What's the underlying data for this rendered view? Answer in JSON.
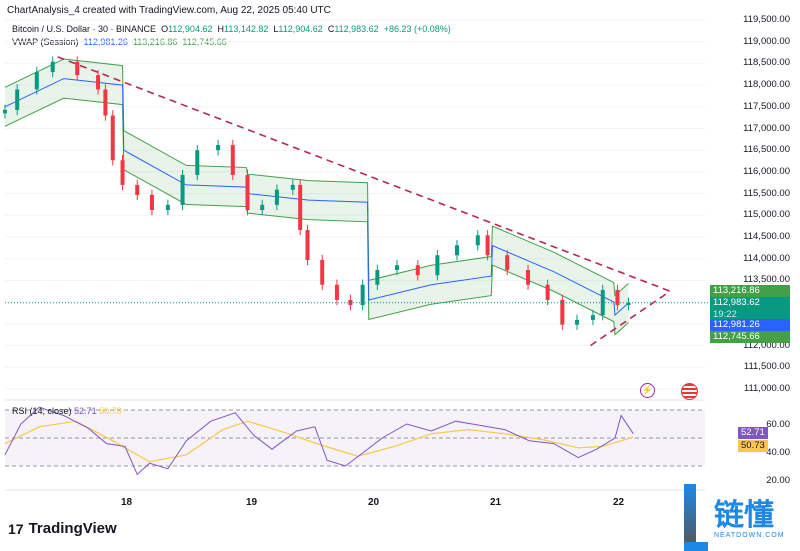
{
  "header": {
    "credit": "ChartAnalysis_4 created with TradingView.com, Aug 22, 2025 05:40 UTC"
  },
  "legend": {
    "symbol": "Bitcoin / U.S. Dollar · 30 · BINANCE",
    "o_label": "O",
    "o": "112,904.62",
    "h_label": "H",
    "h": "113,142.82",
    "l_label": "L",
    "l": "112,904.62",
    "c_label": "C",
    "c": "112,983.62",
    "change": "+86.23 (+0.08%)",
    "vwap_label": "VWAP (Session)",
    "vwap": "112,981.26",
    "vwap_upper": "113,216.86",
    "vwap_lower": "112,745.66"
  },
  "rsi_legend": {
    "label": "RSI (14, close)",
    "rsi": "52.71",
    "ma": "50.73"
  },
  "price_axis": [
    "119,500.00",
    "119,000.00",
    "118,500.00",
    "118,000.00",
    "117,500.00",
    "117,000.00",
    "116,500.00",
    "116,000.00",
    "115,500.00",
    "115,000.00",
    "114,500.00",
    "114,000.00",
    "113,500.00",
    "112,000.00",
    "111,500.00",
    "111,000.00"
  ],
  "price_tags": {
    "upper": "113,216.86",
    "last": "112,983.62",
    "countdown": "19:22",
    "vwap": "112,981.26",
    "lower": "112,745.66"
  },
  "rsi_axis": [
    "60.00",
    "40.00",
    "20.00"
  ],
  "rsi_tags": {
    "rsi": "52.71",
    "ma": "50.73"
  },
  "time_axis": [
    "18",
    "19",
    "20",
    "21",
    "22"
  ],
  "brand": {
    "name": "TradingView",
    "watermark": "链懂",
    "watermark_sub": "NEATDOWN.COM"
  },
  "colors": {
    "up": "#089981",
    "down": "#f23645",
    "vwap": "#2962ff",
    "band": "#43a047",
    "trend": "#b2275a",
    "rsi": "#7e57c2",
    "rsi_ma": "#f9c74f"
  },
  "chart_data": {
    "type": "candlestick",
    "ylim": [
      110750,
      119750
    ],
    "xlim": [
      17.0,
      22.5
    ],
    "closes": [
      [
        17.02,
        117430
      ],
      [
        17.12,
        117900
      ],
      [
        17.28,
        118300
      ],
      [
        17.41,
        118540
      ],
      [
        17.61,
        118230
      ],
      [
        17.78,
        117900
      ],
      [
        17.84,
        117300
      ],
      [
        17.9,
        116270
      ],
      [
        17.98,
        115700
      ],
      [
        18.1,
        115470
      ],
      [
        18.22,
        115120
      ],
      [
        18.35,
        115240
      ],
      [
        18.47,
        115930
      ],
      [
        18.59,
        116500
      ],
      [
        18.76,
        116620
      ],
      [
        18.88,
        115930
      ],
      [
        19.0,
        115120
      ],
      [
        19.12,
        115240
      ],
      [
        19.24,
        115590
      ],
      [
        19.37,
        115700
      ],
      [
        19.43,
        114660
      ],
      [
        19.49,
        113970
      ],
      [
        19.61,
        113400
      ],
      [
        19.73,
        113050
      ],
      [
        19.84,
        112930
      ],
      [
        19.94,
        113400
      ],
      [
        20.06,
        113740
      ],
      [
        20.22,
        113850
      ],
      [
        20.39,
        113620
      ],
      [
        20.55,
        114080
      ],
      [
        20.71,
        114310
      ],
      [
        20.88,
        114540
      ],
      [
        20.96,
        114080
      ],
      [
        21.12,
        113740
      ],
      [
        21.29,
        113400
      ],
      [
        21.45,
        113050
      ],
      [
        21.57,
        112480
      ],
      [
        21.69,
        112590
      ],
      [
        21.82,
        112700
      ],
      [
        21.9,
        113280
      ],
      [
        22.02,
        112930
      ],
      [
        22.11,
        112983
      ]
    ],
    "vwap": [
      [
        17.02,
        117500
      ],
      [
        17.5,
        118150
      ],
      [
        17.98,
        118000
      ],
      [
        17.99,
        116500
      ],
      [
        18.5,
        115700
      ],
      [
        18.99,
        115650
      ],
      [
        19.0,
        115500
      ],
      [
        19.5,
        115350
      ],
      [
        19.98,
        115300
      ],
      [
        19.99,
        113050
      ],
      [
        20.5,
        113400
      ],
      [
        20.99,
        113600
      ],
      [
        21.0,
        114300
      ],
      [
        21.5,
        113700
      ],
      [
        21.99,
        113000
      ],
      [
        22.0,
        112700
      ],
      [
        22.11,
        112981
      ]
    ],
    "trendlines": [
      {
        "from": [
          17.45,
          118650
        ],
        "to": [
          22.45,
          113250
        ]
      },
      {
        "from": [
          21.8,
          112000
        ],
        "to": [
          22.45,
          113250
        ]
      }
    ],
    "current_price": 112983.62,
    "rsi": {
      "ylim": [
        15,
        75
      ],
      "levels": [
        70,
        30
      ],
      "values": [
        [
          17.02,
          38
        ],
        [
          17.15,
          60
        ],
        [
          17.3,
          72
        ],
        [
          17.5,
          66
        ],
        [
          17.7,
          57
        ],
        [
          17.85,
          46
        ],
        [
          18.0,
          44
        ],
        [
          18.1,
          24
        ],
        [
          18.2,
          32
        ],
        [
          18.35,
          28
        ],
        [
          18.5,
          48
        ],
        [
          18.7,
          62
        ],
        [
          18.9,
          68
        ],
        [
          19.05,
          52
        ],
        [
          19.2,
          42
        ],
        [
          19.4,
          55
        ],
        [
          19.55,
          58
        ],
        [
          19.65,
          34
        ],
        [
          19.8,
          30
        ],
        [
          19.95,
          40
        ],
        [
          20.1,
          50
        ],
        [
          20.3,
          60
        ],
        [
          20.5,
          55
        ],
        [
          20.7,
          62
        ],
        [
          20.9,
          59
        ],
        [
          21.1,
          56
        ],
        [
          21.3,
          48
        ],
        [
          21.5,
          46
        ],
        [
          21.7,
          36
        ],
        [
          21.85,
          42
        ],
        [
          22.0,
          50
        ],
        [
          22.05,
          66
        ],
        [
          22.15,
          53
        ]
      ],
      "ma": [
        [
          17.02,
          46
        ],
        [
          17.3,
          58
        ],
        [
          17.6,
          62
        ],
        [
          17.9,
          48
        ],
        [
          18.2,
          33
        ],
        [
          18.5,
          38
        ],
        [
          18.8,
          56
        ],
        [
          19.0,
          62
        ],
        [
          19.3,
          54
        ],
        [
          19.6,
          45
        ],
        [
          19.9,
          37
        ],
        [
          20.2,
          44
        ],
        [
          20.5,
          53
        ],
        [
          20.8,
          56
        ],
        [
          21.1,
          53
        ],
        [
          21.4,
          49
        ],
        [
          21.7,
          43
        ],
        [
          21.9,
          44
        ],
        [
          22.15,
          50.7
        ]
      ]
    }
  }
}
